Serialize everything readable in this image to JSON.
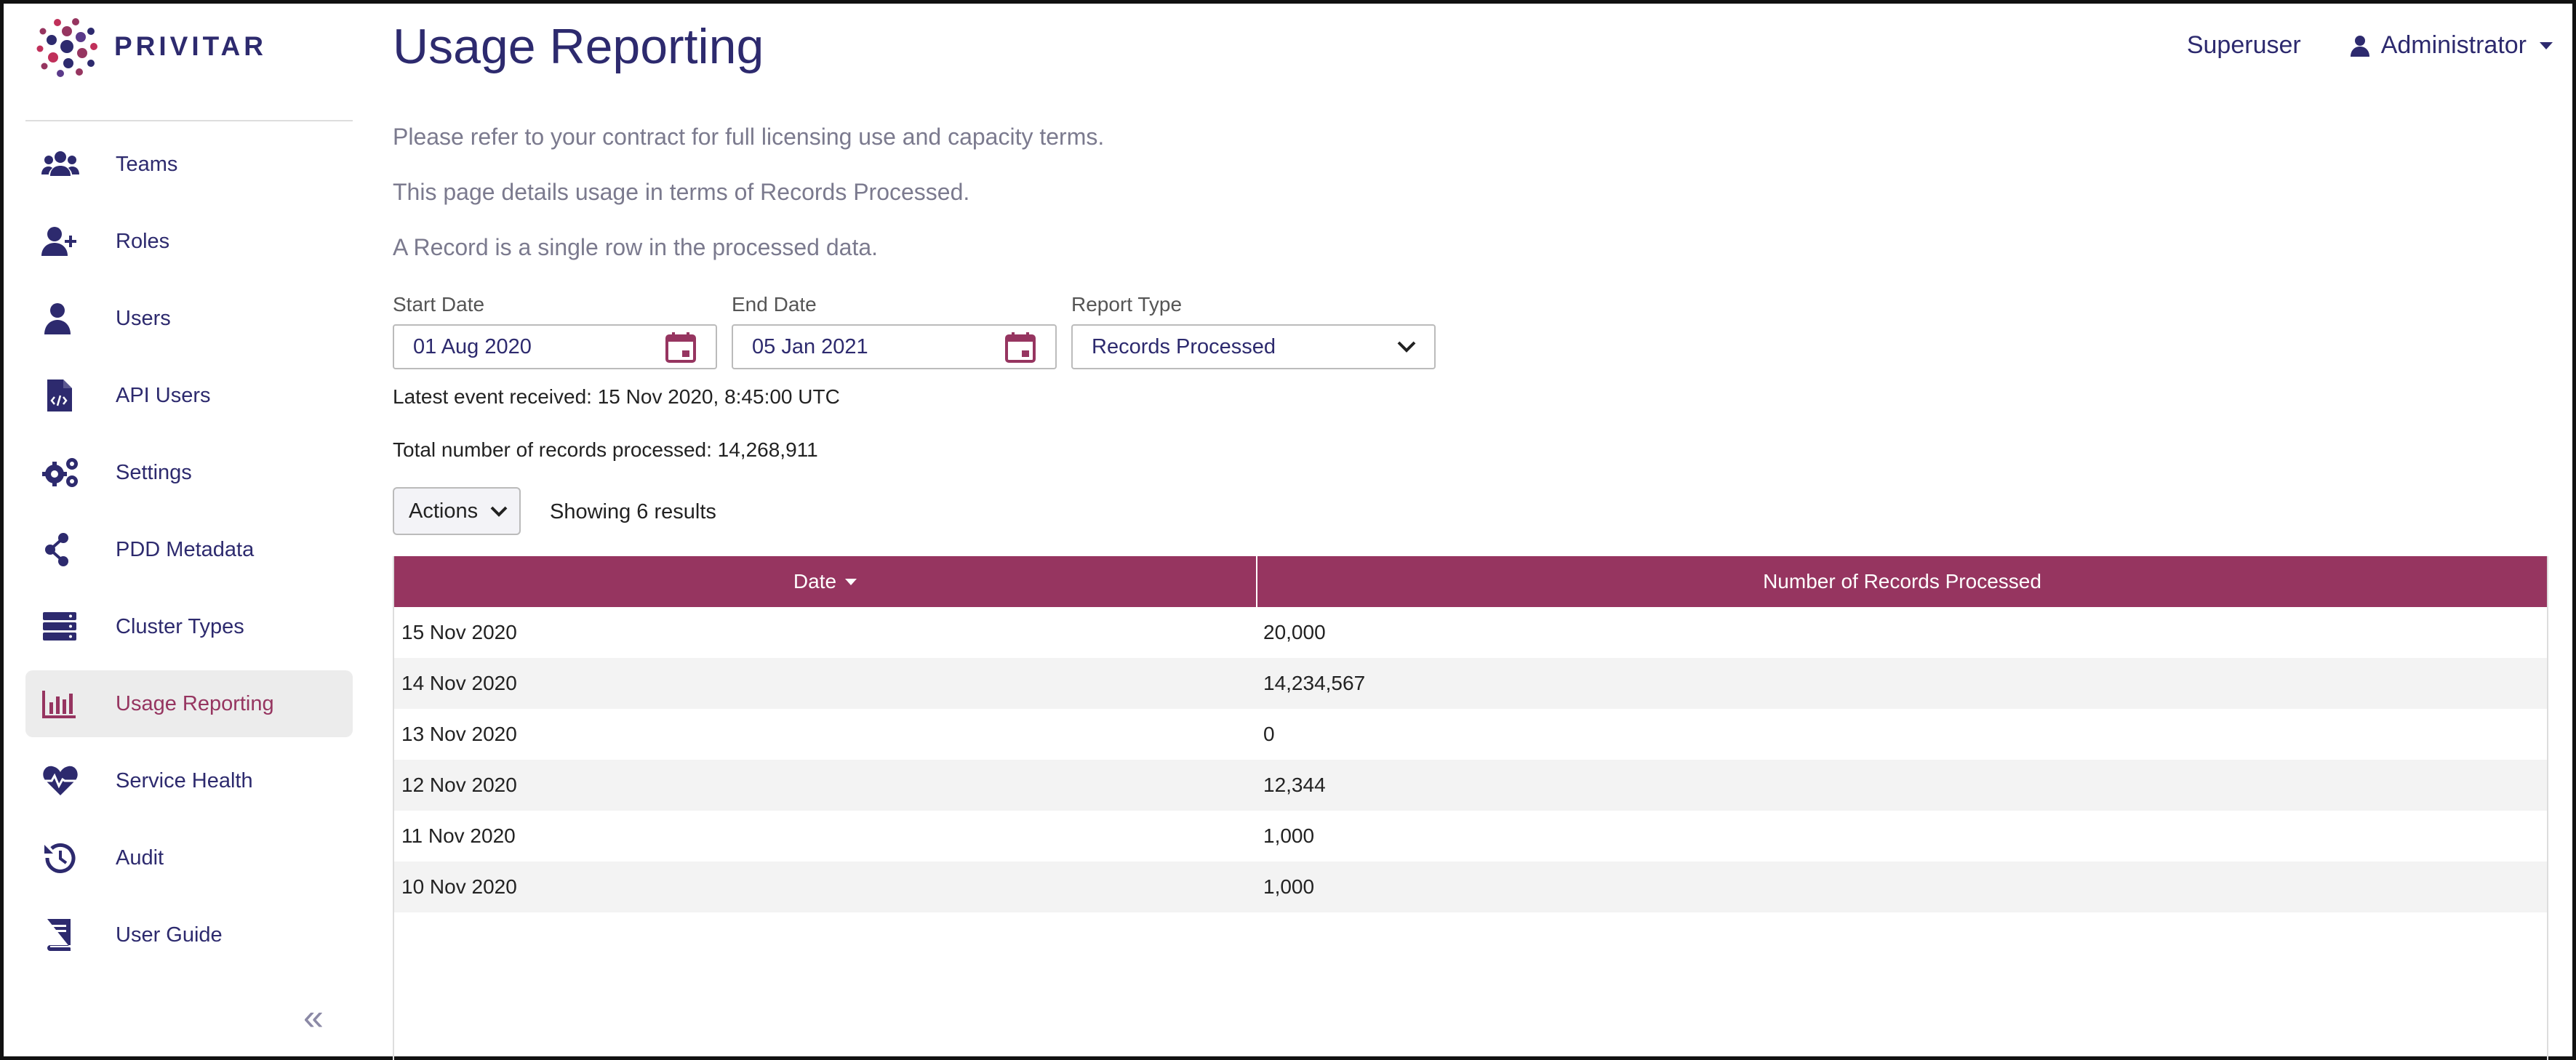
{
  "brand": {
    "name": "PRIVITAR",
    "accent": "#963560",
    "primary": "#2d2a6e"
  },
  "sidebar": {
    "items": [
      {
        "label": "Teams",
        "icon": "users-group-icon"
      },
      {
        "label": "Roles",
        "icon": "user-plus-icon"
      },
      {
        "label": "Users",
        "icon": "user-icon"
      },
      {
        "label": "API Users",
        "icon": "file-code-icon"
      },
      {
        "label": "Settings",
        "icon": "cogs-icon"
      },
      {
        "label": "PDD Metadata",
        "icon": "share-icon"
      },
      {
        "label": "Cluster Types",
        "icon": "server-icon"
      },
      {
        "label": "Usage Reporting",
        "icon": "bar-chart-icon",
        "active": true
      },
      {
        "label": "Service Health",
        "icon": "heartbeat-icon"
      },
      {
        "label": "Audit",
        "icon": "history-icon"
      },
      {
        "label": "User Guide",
        "icon": "book-icon"
      }
    ],
    "collapse_label": "«"
  },
  "header": {
    "title": "Usage Reporting",
    "superuser": "Superuser",
    "account": "Administrator"
  },
  "intro": {
    "line1": "Please refer to your contract for full licensing use and capacity terms.",
    "line2": "This page details usage in terms of Records Processed.",
    "line3": "A Record is a single row in the processed data."
  },
  "filters": {
    "start_label": "Start Date",
    "start_value": "01 Aug 2020",
    "end_label": "End Date",
    "end_value": "05 Jan 2021",
    "type_label": "Report Type",
    "type_value": "Records Processed"
  },
  "summary": {
    "latest_event": "Latest event received: 15 Nov 2020, 8:45:00 UTC",
    "total": "Total number of records processed: 14,268,911"
  },
  "toolbar": {
    "actions_label": "Actions",
    "showing": "Showing 6 results"
  },
  "table": {
    "columns": [
      "Date",
      "Number of Records Processed"
    ],
    "rows": [
      {
        "date": "15 Nov 2020",
        "value": "20,000"
      },
      {
        "date": "14 Nov 2020",
        "value": "14,234,567"
      },
      {
        "date": "13 Nov 2020",
        "value": "0"
      },
      {
        "date": "12 Nov 2020",
        "value": "12,344"
      },
      {
        "date": "11 Nov 2020",
        "value": "1,000"
      },
      {
        "date": "10 Nov 2020",
        "value": "1,000"
      }
    ]
  }
}
